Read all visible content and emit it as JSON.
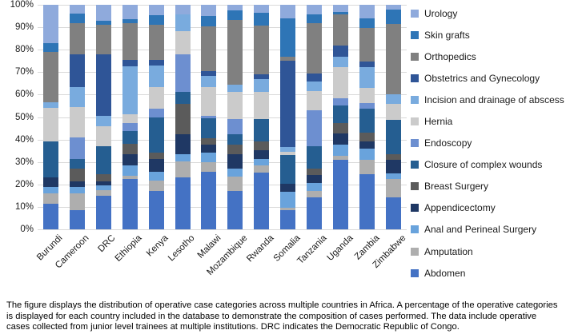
{
  "figure": {
    "caption": "The figure displays the distribution of operative case categories across multiple countries in Africa. A percentage of the operative categories is displayed for each country included in the database to demonstrate the composition of cases performed. The data include operative cases collected from junior level trainees at multiple institutions. DRC indicates the Democratic Republic of Congo."
  },
  "chart_data": {
    "type": "bar",
    "stacked": true,
    "stacking": "percent",
    "title": "",
    "xlabel": "",
    "ylabel": "",
    "ylim": [
      0,
      100
    ],
    "yticks": [
      0,
      10,
      20,
      30,
      40,
      50,
      60,
      70,
      80,
      90,
      100
    ],
    "ytick_suffix": "%",
    "grid": true,
    "gridline_color": "#d9d9d9",
    "legend_position": "right",
    "legend_order": "top of stack listed first",
    "categories": [
      "Burundi",
      "Cameroon",
      "DRC",
      "Ethiopia",
      "Kenya",
      "Lesotho",
      "Malawi",
      "Mozambique",
      "Rwanda",
      "Somalia",
      "Tanzania",
      "Uganda",
      "Zambia",
      "Zimbabwe"
    ],
    "series": [
      {
        "name": "Abdomen",
        "color": "#4472c4",
        "values": [
          11.5,
          8.5,
          15.0,
          22.5,
          17.2,
          23.0,
          25.8,
          17.1,
          25.1,
          8.5,
          14.2,
          31.0,
          24.5,
          14.2
        ]
      },
      {
        "name": "Amputation",
        "color": "#aeaeae",
        "values": [
          4.5,
          7.5,
          2.5,
          1.5,
          4.5,
          7.1,
          4.2,
          6.3,
          3.3,
          1.2,
          2.9,
          1.8,
          6.5,
          8.3
        ]
      },
      {
        "name": "Anal and Perineal Surgery",
        "color": "#69a3dc",
        "values": [
          3.0,
          3.0,
          2.0,
          4.6,
          3.8,
          3.5,
          4.1,
          3.5,
          2.9,
          6.9,
          3.5,
          5.1,
          4.8,
          2.6
        ]
      },
      {
        "name": "Appendicectomy",
        "color": "#1f3864",
        "values": [
          4.0,
          2.5,
          2.0,
          5.0,
          5.7,
          8.7,
          3.6,
          6.5,
          3.9,
          3.8,
          3.6,
          4.8,
          3.5,
          5.9
        ]
      },
      {
        "name": "Breast Surgery",
        "color": "#5b5b5b",
        "values": [
          0.0,
          5.5,
          3.0,
          4.4,
          3.0,
          13.7,
          3.0,
          4.2,
          4.1,
          0.0,
          2.7,
          4.7,
          3.6,
          2.4
        ]
      },
      {
        "name": "Closure of complex wounds",
        "color": "#255e91",
        "values": [
          16.0,
          4.5,
          12.5,
          5.8,
          15.7,
          5.3,
          8.8,
          4.7,
          9.8,
          12.8,
          10.1,
          7.6,
          10.9,
          15.4
        ]
      },
      {
        "name": "Endoscopy",
        "color": "#6d8fd0",
        "values": [
          0.0,
          9.5,
          0.0,
          3.5,
          4.0,
          16.5,
          1.2,
          6.8,
          0.0,
          0.0,
          16.0,
          3.5,
          2.4,
          0.0
        ]
      },
      {
        "name": "Hernia",
        "color": "#cbcbcb",
        "values": [
          15.0,
          13.5,
          9.0,
          4.0,
          9.3,
          10.4,
          12.5,
          12.2,
          12.2,
          1.4,
          8.6,
          13.8,
          6.8,
          7.2
        ]
      },
      {
        "name": "Incision and drainage of abscess",
        "color": "#79abde",
        "values": [
          2.5,
          9.0,
          4.5,
          21.2,
          9.6,
          7.4,
          5.3,
          3.2,
          5.5,
          2.1,
          4.4,
          4.7,
          9.3,
          4.0
        ]
      },
      {
        "name": "Obstetrics and Gynecology",
        "color": "#2f5597",
        "values": [
          0.0,
          14.5,
          27.5,
          3.0,
          2.5,
          0.0,
          2.0,
          0.0,
          2.4,
          38.4,
          3.5,
          5.0,
          2.3,
          0.0
        ]
      },
      {
        "name": "Orthopedics",
        "color": "#808080",
        "values": [
          22.5,
          14.0,
          13.0,
          16.5,
          16.0,
          0.0,
          20.0,
          28.8,
          21.7,
          1.9,
          22.2,
          13.8,
          15.1,
          31.5
        ]
      },
      {
        "name": "Skin grafts",
        "color": "#2e75b6",
        "values": [
          4.0,
          4.0,
          2.0,
          1.5,
          4.2,
          0.0,
          4.5,
          4.1,
          5.5,
          17.1,
          3.9,
          1.0,
          4.4,
          6.5
        ]
      },
      {
        "name": "Urology",
        "color": "#8faadc",
        "values": [
          17.0,
          4.0,
          7.0,
          6.5,
          4.5,
          4.4,
          5.0,
          2.6,
          3.6,
          5.9,
          4.4,
          3.2,
          5.9,
          2.0
        ]
      }
    ]
  }
}
